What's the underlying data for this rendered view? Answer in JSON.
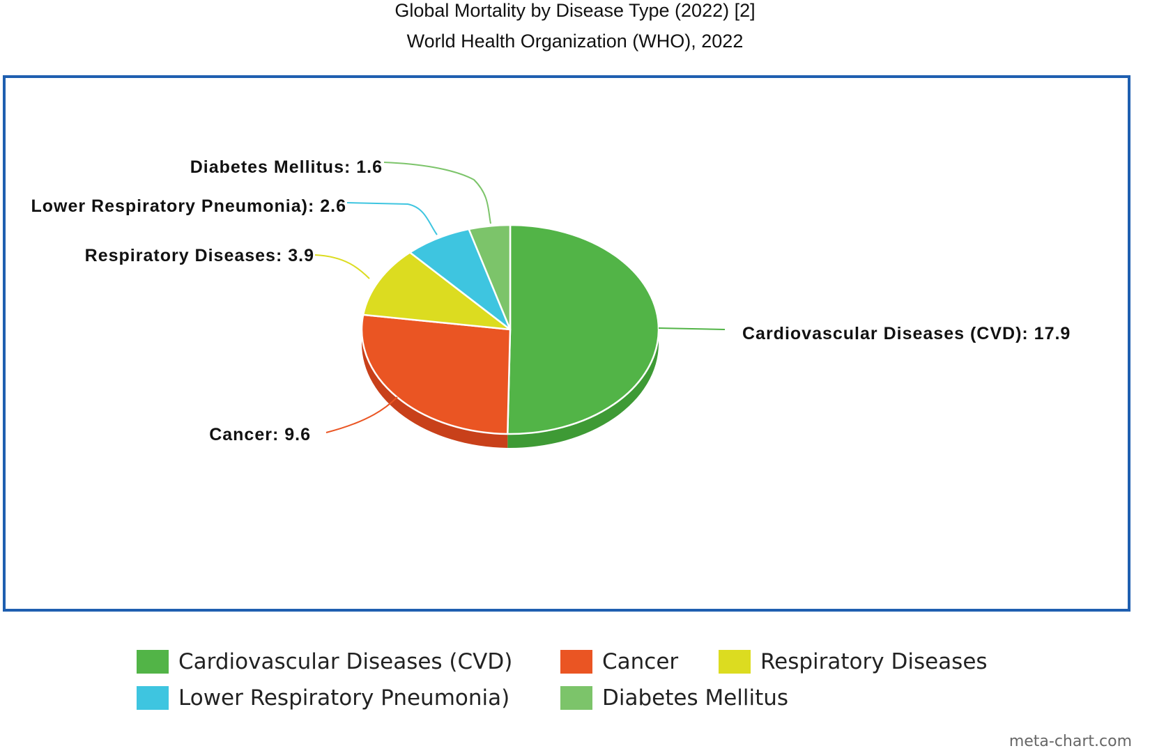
{
  "header": {
    "title": "Global Mortality by Disease Type (2022) [2]",
    "subtitle": "World Health Organization (WHO), 2022"
  },
  "chart_data": {
    "type": "pie",
    "title": "Global Mortality by Disease Type (2022) [2]",
    "subtitle": "World Health Organization (WHO), 2022",
    "categories": [
      "Cardiovascular Diseases (CVD)",
      "Cancer",
      "Respiratory Diseases",
      "Lower Respiratory Pneumonia)",
      "Diabetes Mellitus"
    ],
    "values": [
      17.9,
      9.6,
      3.9,
      2.6,
      1.6
    ],
    "labels": [
      "Cardiovascular Diseases (CVD): 17.9",
      "Cancer: 9.6",
      "Respiratory Diseases: 3.9",
      "Lower Respiratory Pneumonia): 2.6",
      "Diabetes Mellitus: 1.6"
    ],
    "colors": [
      "#52b447",
      "#ea5523",
      "#dcdc20",
      "#3ec5e0",
      "#7cc46a"
    ],
    "side_colors": [
      "#3e9a35",
      "#c8401a",
      "#b8b818",
      "#2fa7c0",
      "#5ea850"
    ],
    "legend_position": "bottom",
    "style": "3d"
  },
  "legend": {
    "items": [
      "Cardiovascular Diseases (CVD)",
      "Cancer",
      "Respiratory Diseases",
      "Lower Respiratory Pneumonia)",
      "Diabetes Mellitus"
    ]
  },
  "watermark": "meta-chart.com",
  "frame_color": "#1f5fb0"
}
